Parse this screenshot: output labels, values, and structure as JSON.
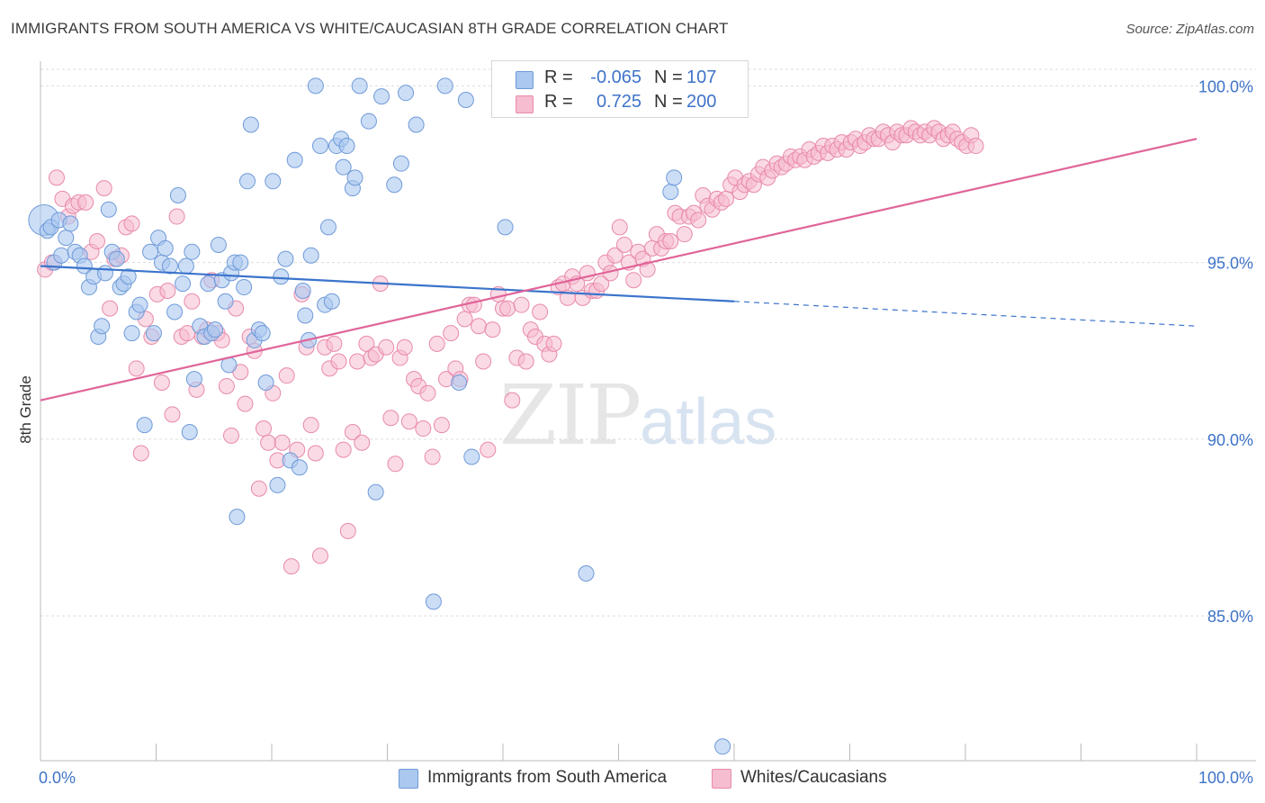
{
  "title": "IMMIGRANTS FROM SOUTH AMERICA VS WHITE/CAUCASIAN 8TH GRADE CORRELATION CHART",
  "source": "Source: ZipAtlas.com",
  "watermark": {
    "part1": "ZIP",
    "part2": "atlas"
  },
  "legend": {
    "rows": [
      {
        "r_label": "R =",
        "r_value": "-0.065",
        "n_label": "N =",
        "n_value": "107",
        "color": "#aac8f0",
        "border": "#6f9ad8"
      },
      {
        "r_label": "R =",
        "r_value": "0.725",
        "n_label": "N =",
        "n_value": "200",
        "color": "#f6bcd0",
        "border": "#e88aab"
      }
    ]
  },
  "bottom_legend": [
    {
      "label": "Immigrants from South America",
      "color": "#aac8f0",
      "border": "#6f9ad8"
    },
    {
      "label": "Whites/Caucasians",
      "color": "#f6bcd0",
      "border": "#e88aab"
    }
  ],
  "chart_data": {
    "type": "scatter",
    "title": "IMMIGRANTS FROM SOUTH AMERICA VS WHITE/CAUCASIAN 8TH GRADE CORRELATION CHART",
    "xlabel": "",
    "ylabel": "8th Grade",
    "xlim": [
      0,
      100
    ],
    "ylim": [
      80.9,
      100.9
    ],
    "x_tick_labels": [
      "0.0%",
      "100.0%"
    ],
    "y_ticks": [
      85.0,
      90.0,
      95.0,
      100.0
    ],
    "y_tick_labels": [
      "85.0%",
      "90.0%",
      "95.0%",
      "100.0%"
    ],
    "grid": true,
    "colors": {
      "blue_fill": "#aac8f0",
      "blue_stroke": "#6f9ad8",
      "blue_line": "#3b74cc",
      "pink_fill": "#f6bcd0",
      "pink_stroke": "#e88aab",
      "pink_line": "#e0649a",
      "tick_label": "#3f73c8"
    },
    "series": [
      {
        "name": "Immigrants from South America",
        "trend": {
          "x0": 0,
          "y0": 94.9,
          "x1": 60,
          "y1": 93.9,
          "dashed_to_x": 100,
          "dashed_to_y": 93.2
        },
        "points": [
          [
            0.3,
            96.2
          ],
          [
            0.6,
            95.9
          ],
          [
            0.9,
            96.0
          ],
          [
            1.2,
            95.0
          ],
          [
            1.6,
            96.2
          ],
          [
            1.8,
            95.2
          ],
          [
            2.2,
            95.7
          ],
          [
            2.6,
            96.1
          ],
          [
            3.0,
            95.3
          ],
          [
            3.4,
            95.2
          ],
          [
            3.8,
            94.9
          ],
          [
            4.2,
            94.3
          ],
          [
            4.6,
            94.6
          ],
          [
            5.0,
            92.9
          ],
          [
            5.3,
            93.2
          ],
          [
            5.6,
            94.7
          ],
          [
            5.9,
            96.5
          ],
          [
            6.2,
            95.3
          ],
          [
            6.6,
            95.1
          ],
          [
            6.9,
            94.3
          ],
          [
            7.2,
            94.4
          ],
          [
            7.6,
            94.6
          ],
          [
            7.9,
            93.0
          ],
          [
            8.3,
            93.6
          ],
          [
            8.6,
            93.8
          ],
          [
            9.0,
            90.4
          ],
          [
            9.5,
            95.3
          ],
          [
            9.8,
            93.0
          ],
          [
            10.2,
            95.7
          ],
          [
            10.5,
            95.0
          ],
          [
            10.8,
            95.4
          ],
          [
            11.2,
            94.9
          ],
          [
            11.6,
            93.6
          ],
          [
            11.9,
            96.9
          ],
          [
            12.3,
            94.4
          ],
          [
            12.6,
            94.9
          ],
          [
            12.9,
            90.2
          ],
          [
            13.1,
            95.3
          ],
          [
            13.3,
            91.7
          ],
          [
            13.8,
            93.2
          ],
          [
            14.2,
            92.9
          ],
          [
            14.5,
            94.4
          ],
          [
            14.8,
            93.0
          ],
          [
            15.1,
            93.1
          ],
          [
            15.4,
            95.5
          ],
          [
            15.7,
            94.5
          ],
          [
            16.0,
            93.9
          ],
          [
            16.3,
            92.1
          ],
          [
            16.5,
            94.7
          ],
          [
            16.8,
            95.0
          ],
          [
            17.0,
            87.8
          ],
          [
            17.3,
            95.0
          ],
          [
            17.6,
            94.3
          ],
          [
            17.9,
            97.3
          ],
          [
            18.2,
            98.9
          ],
          [
            18.5,
            92.8
          ],
          [
            18.9,
            93.1
          ],
          [
            19.2,
            93.0
          ],
          [
            19.5,
            91.6
          ],
          [
            20.1,
            97.3
          ],
          [
            20.5,
            88.7
          ],
          [
            20.8,
            94.6
          ],
          [
            21.2,
            95.1
          ],
          [
            21.6,
            89.4
          ],
          [
            22.0,
            97.9
          ],
          [
            22.4,
            89.2
          ],
          [
            22.7,
            94.2
          ],
          [
            22.9,
            93.5
          ],
          [
            23.2,
            92.8
          ],
          [
            23.4,
            95.2
          ],
          [
            23.8,
            100.0
          ],
          [
            24.2,
            98.3
          ],
          [
            24.6,
            93.8
          ],
          [
            24.9,
            96.0
          ],
          [
            25.2,
            93.9
          ],
          [
            25.6,
            98.3
          ],
          [
            26.0,
            98.5
          ],
          [
            26.2,
            97.7
          ],
          [
            26.5,
            98.3
          ],
          [
            27.0,
            97.1
          ],
          [
            27.2,
            97.4
          ],
          [
            27.6,
            100.0
          ],
          [
            28.4,
            99.0
          ],
          [
            29.0,
            88.5
          ],
          [
            29.5,
            99.7
          ],
          [
            30.6,
            97.2
          ],
          [
            31.2,
            97.8
          ],
          [
            31.6,
            99.8
          ],
          [
            32.5,
            98.9
          ],
          [
            34.0,
            85.4
          ],
          [
            35.0,
            100.0
          ],
          [
            36.2,
            91.6
          ],
          [
            36.8,
            99.6
          ],
          [
            37.3,
            89.5
          ],
          [
            40.2,
            96.0
          ],
          [
            47.2,
            86.2
          ],
          [
            54.5,
            97.0
          ],
          [
            54.8,
            97.4
          ],
          [
            59.0,
            81.3
          ]
        ]
      },
      {
        "name": "Whites/Caucasians",
        "trend": {
          "x0": 0,
          "y0": 91.1,
          "x1": 100,
          "y1": 98.5
        },
        "points": [
          [
            0.4,
            94.8
          ],
          [
            1.0,
            95.0
          ],
          [
            1.4,
            97.4
          ],
          [
            1.9,
            96.8
          ],
          [
            2.4,
            96.3
          ],
          [
            2.8,
            96.6
          ],
          [
            3.3,
            96.7
          ],
          [
            3.9,
            96.7
          ],
          [
            4.4,
            95.3
          ],
          [
            4.9,
            95.6
          ],
          [
            5.5,
            97.1
          ],
          [
            6.0,
            93.7
          ],
          [
            6.4,
            95.1
          ],
          [
            7.0,
            95.2
          ],
          [
            7.4,
            96.0
          ],
          [
            7.9,
            96.1
          ],
          [
            8.3,
            92.0
          ],
          [
            8.7,
            89.6
          ],
          [
            9.1,
            93.4
          ],
          [
            9.6,
            92.9
          ],
          [
            10.1,
            94.1
          ],
          [
            10.5,
            91.6
          ],
          [
            11.0,
            94.2
          ],
          [
            11.4,
            90.7
          ],
          [
            11.8,
            96.3
          ],
          [
            12.2,
            92.9
          ],
          [
            12.7,
            93.0
          ],
          [
            13.1,
            93.9
          ],
          [
            13.5,
            91.4
          ],
          [
            14.0,
            92.9
          ],
          [
            14.4,
            93.1
          ],
          [
            14.8,
            94.5
          ],
          [
            15.3,
            93.0
          ],
          [
            15.7,
            92.8
          ],
          [
            16.1,
            91.5
          ],
          [
            16.5,
            90.1
          ],
          [
            16.9,
            93.7
          ],
          [
            17.3,
            91.9
          ],
          [
            17.7,
            91.0
          ],
          [
            18.1,
            92.9
          ],
          [
            18.5,
            92.5
          ],
          [
            18.9,
            88.6
          ],
          [
            19.3,
            90.3
          ],
          [
            19.7,
            89.9
          ],
          [
            20.1,
            91.3
          ],
          [
            20.5,
            89.4
          ],
          [
            20.9,
            89.9
          ],
          [
            21.3,
            91.8
          ],
          [
            21.7,
            86.4
          ],
          [
            22.2,
            89.7
          ],
          [
            22.6,
            94.1
          ],
          [
            23.0,
            92.6
          ],
          [
            23.4,
            90.4
          ],
          [
            23.8,
            89.6
          ],
          [
            24.2,
            86.7
          ],
          [
            24.6,
            92.6
          ],
          [
            25.0,
            92.0
          ],
          [
            25.4,
            92.7
          ],
          [
            25.8,
            92.2
          ],
          [
            26.2,
            89.7
          ],
          [
            26.6,
            87.4
          ],
          [
            27.0,
            90.2
          ],
          [
            27.4,
            92.2
          ],
          [
            27.8,
            89.9
          ],
          [
            28.2,
            92.7
          ],
          [
            28.6,
            92.3
          ],
          [
            29.0,
            92.4
          ],
          [
            29.4,
            94.4
          ],
          [
            29.9,
            92.6
          ],
          [
            30.3,
            90.6
          ],
          [
            30.7,
            89.3
          ],
          [
            31.1,
            92.3
          ],
          [
            31.5,
            92.6
          ],
          [
            31.9,
            90.5
          ],
          [
            32.3,
            91.7
          ],
          [
            32.7,
            91.5
          ],
          [
            33.1,
            90.3
          ],
          [
            33.5,
            91.3
          ],
          [
            33.9,
            89.5
          ],
          [
            34.3,
            92.7
          ],
          [
            34.7,
            90.4
          ],
          [
            35.1,
            91.7
          ],
          [
            35.5,
            93.0
          ],
          [
            35.9,
            92.0
          ],
          [
            36.3,
            91.7
          ],
          [
            36.7,
            93.4
          ],
          [
            37.1,
            93.8
          ],
          [
            37.5,
            93.8
          ],
          [
            37.9,
            93.2
          ],
          [
            38.3,
            92.2
          ],
          [
            38.7,
            89.7
          ],
          [
            39.1,
            93.1
          ],
          [
            39.6,
            94.1
          ],
          [
            40.0,
            93.7
          ],
          [
            40.4,
            93.7
          ],
          [
            40.8,
            91.1
          ],
          [
            41.2,
            92.3
          ],
          [
            41.6,
            93.8
          ],
          [
            42.0,
            92.2
          ],
          [
            42.4,
            93.1
          ],
          [
            42.8,
            92.9
          ],
          [
            43.2,
            93.6
          ],
          [
            43.6,
            92.7
          ],
          [
            44.0,
            92.4
          ],
          [
            44.4,
            92.7
          ],
          [
            44.8,
            94.3
          ],
          [
            45.2,
            94.4
          ],
          [
            45.6,
            94.0
          ],
          [
            46.0,
            94.6
          ],
          [
            46.4,
            94.4
          ],
          [
            46.9,
            94.0
          ],
          [
            47.3,
            94.7
          ],
          [
            47.7,
            94.2
          ],
          [
            48.1,
            94.2
          ],
          [
            48.5,
            94.4
          ],
          [
            48.9,
            95.0
          ],
          [
            49.3,
            94.7
          ],
          [
            49.7,
            95.2
          ],
          [
            50.1,
            96.0
          ],
          [
            50.5,
            95.5
          ],
          [
            50.9,
            95.0
          ],
          [
            51.3,
            94.5
          ],
          [
            51.7,
            95.3
          ],
          [
            52.1,
            95.1
          ],
          [
            52.5,
            94.8
          ],
          [
            52.9,
            95.4
          ],
          [
            53.3,
            95.8
          ],
          [
            53.7,
            95.4
          ],
          [
            54.1,
            95.6
          ],
          [
            54.5,
            95.6
          ],
          [
            54.9,
            96.4
          ],
          [
            55.3,
            96.3
          ],
          [
            55.7,
            95.8
          ],
          [
            56.1,
            96.3
          ],
          [
            56.5,
            96.4
          ],
          [
            56.9,
            96.2
          ],
          [
            57.3,
            96.9
          ],
          [
            57.7,
            96.6
          ],
          [
            58.1,
            96.5
          ],
          [
            58.5,
            96.8
          ],
          [
            58.9,
            96.7
          ],
          [
            59.3,
            96.8
          ],
          [
            59.7,
            97.2
          ],
          [
            60.1,
            97.4
          ],
          [
            60.5,
            97.0
          ],
          [
            60.9,
            97.2
          ],
          [
            61.3,
            97.3
          ],
          [
            61.7,
            97.2
          ],
          [
            62.1,
            97.5
          ],
          [
            62.5,
            97.7
          ],
          [
            62.9,
            97.4
          ],
          [
            63.3,
            97.6
          ],
          [
            63.7,
            97.8
          ],
          [
            64.1,
            97.7
          ],
          [
            64.5,
            97.8
          ],
          [
            64.9,
            98.0
          ],
          [
            65.3,
            97.9
          ],
          [
            65.7,
            98.0
          ],
          [
            66.1,
            97.9
          ],
          [
            66.5,
            98.2
          ],
          [
            66.9,
            98.0
          ],
          [
            67.3,
            98.1
          ],
          [
            67.7,
            98.3
          ],
          [
            68.1,
            98.1
          ],
          [
            68.5,
            98.3
          ],
          [
            68.9,
            98.2
          ],
          [
            69.3,
            98.4
          ],
          [
            69.7,
            98.2
          ],
          [
            70.1,
            98.4
          ],
          [
            70.5,
            98.5
          ],
          [
            70.9,
            98.3
          ],
          [
            71.3,
            98.4
          ],
          [
            71.7,
            98.6
          ],
          [
            72.1,
            98.5
          ],
          [
            72.5,
            98.5
          ],
          [
            72.9,
            98.7
          ],
          [
            73.3,
            98.6
          ],
          [
            73.7,
            98.4
          ],
          [
            74.1,
            98.7
          ],
          [
            74.5,
            98.6
          ],
          [
            74.9,
            98.6
          ],
          [
            75.3,
            98.8
          ],
          [
            75.7,
            98.7
          ],
          [
            76.1,
            98.6
          ],
          [
            76.5,
            98.7
          ],
          [
            76.9,
            98.6
          ],
          [
            77.3,
            98.8
          ],
          [
            77.7,
            98.7
          ],
          [
            78.1,
            98.5
          ],
          [
            78.5,
            98.6
          ],
          [
            78.9,
            98.7
          ],
          [
            79.3,
            98.5
          ],
          [
            79.7,
            98.4
          ],
          [
            80.1,
            98.3
          ],
          [
            80.5,
            98.6
          ],
          [
            80.9,
            98.3
          ]
        ]
      }
    ]
  }
}
